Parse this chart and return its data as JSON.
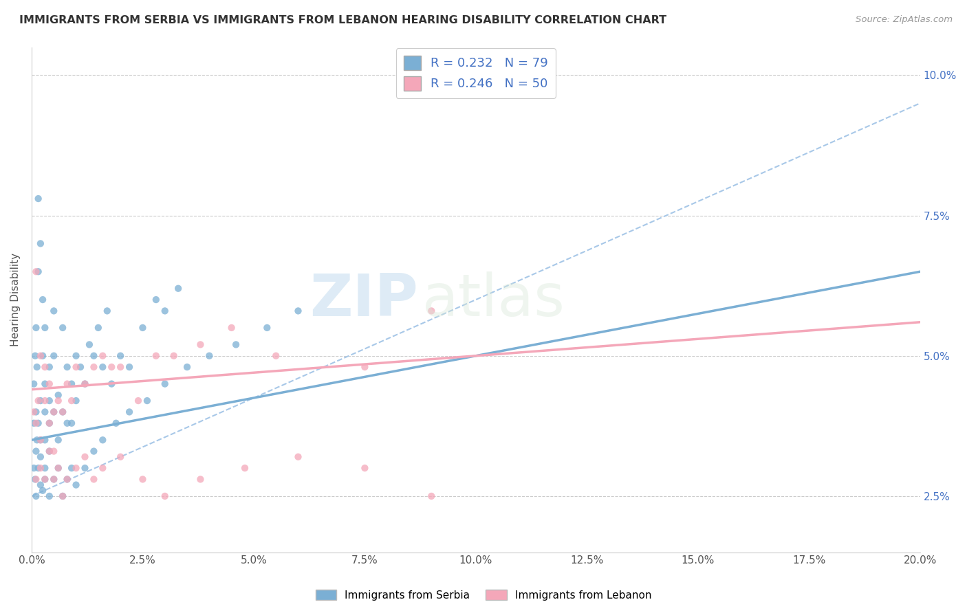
{
  "title": "IMMIGRANTS FROM SERBIA VS IMMIGRANTS FROM LEBANON HEARING DISABILITY CORRELATION CHART",
  "source": "Source: ZipAtlas.com",
  "xlabel": "",
  "ylabel": "Hearing Disability",
  "xlim": [
    0.0,
    0.2
  ],
  "ylim": [
    0.015,
    0.105
  ],
  "serbia_color": "#7bafd4",
  "lebanon_color": "#f4a7b9",
  "serbia_R": 0.232,
  "serbia_N": 79,
  "lebanon_R": 0.246,
  "lebanon_N": 50,
  "serbia_trendline": [
    0.0,
    0.035,
    0.2,
    0.065
  ],
  "lebanon_trendline": [
    0.0,
    0.044,
    0.2,
    0.056
  ],
  "dashed_line": [
    0.0,
    0.025,
    0.2,
    0.095
  ],
  "dashed_color": "#a8c8e8",
  "serbia_scatter_x": [
    0.0005,
    0.0005,
    0.0008,
    0.001,
    0.001,
    0.0012,
    0.0012,
    0.0015,
    0.0015,
    0.0015,
    0.002,
    0.002,
    0.002,
    0.0025,
    0.0025,
    0.003,
    0.003,
    0.003,
    0.003,
    0.004,
    0.004,
    0.004,
    0.005,
    0.005,
    0.005,
    0.006,
    0.006,
    0.007,
    0.007,
    0.008,
    0.008,
    0.009,
    0.009,
    0.01,
    0.01,
    0.011,
    0.012,
    0.013,
    0.014,
    0.015,
    0.016,
    0.017,
    0.018,
    0.02,
    0.022,
    0.025,
    0.028,
    0.03,
    0.033,
    0.0005,
    0.0008,
    0.001,
    0.001,
    0.0015,
    0.002,
    0.002,
    0.0025,
    0.003,
    0.003,
    0.004,
    0.004,
    0.005,
    0.006,
    0.007,
    0.008,
    0.009,
    0.01,
    0.012,
    0.014,
    0.016,
    0.019,
    0.022,
    0.026,
    0.03,
    0.035,
    0.04,
    0.046,
    0.053,
    0.06
  ],
  "serbia_scatter_y": [
    0.038,
    0.045,
    0.05,
    0.04,
    0.055,
    0.035,
    0.048,
    0.038,
    0.078,
    0.065,
    0.07,
    0.042,
    0.035,
    0.06,
    0.05,
    0.045,
    0.04,
    0.055,
    0.035,
    0.048,
    0.042,
    0.038,
    0.05,
    0.04,
    0.058,
    0.043,
    0.035,
    0.055,
    0.04,
    0.048,
    0.038,
    0.045,
    0.038,
    0.05,
    0.042,
    0.048,
    0.045,
    0.052,
    0.05,
    0.055,
    0.048,
    0.058,
    0.045,
    0.05,
    0.048,
    0.055,
    0.06,
    0.058,
    0.062,
    0.03,
    0.028,
    0.033,
    0.025,
    0.03,
    0.027,
    0.032,
    0.026,
    0.028,
    0.03,
    0.025,
    0.033,
    0.028,
    0.03,
    0.025,
    0.028,
    0.03,
    0.027,
    0.03,
    0.033,
    0.035,
    0.038,
    0.04,
    0.042,
    0.045,
    0.048,
    0.05,
    0.052,
    0.055,
    0.058
  ],
  "lebanon_scatter_x": [
    0.0005,
    0.001,
    0.001,
    0.0015,
    0.002,
    0.002,
    0.003,
    0.003,
    0.004,
    0.004,
    0.005,
    0.005,
    0.006,
    0.007,
    0.008,
    0.009,
    0.01,
    0.012,
    0.014,
    0.016,
    0.018,
    0.02,
    0.024,
    0.028,
    0.032,
    0.038,
    0.045,
    0.055,
    0.075,
    0.09,
    0.001,
    0.002,
    0.003,
    0.004,
    0.005,
    0.006,
    0.007,
    0.008,
    0.01,
    0.012,
    0.014,
    0.016,
    0.02,
    0.025,
    0.03,
    0.038,
    0.048,
    0.06,
    0.075,
    0.09
  ],
  "lebanon_scatter_y": [
    0.04,
    0.038,
    0.065,
    0.042,
    0.05,
    0.035,
    0.048,
    0.042,
    0.045,
    0.038,
    0.04,
    0.033,
    0.042,
    0.04,
    0.045,
    0.042,
    0.048,
    0.045,
    0.048,
    0.05,
    0.048,
    0.048,
    0.042,
    0.05,
    0.05,
    0.052,
    0.055,
    0.05,
    0.048,
    0.058,
    0.028,
    0.03,
    0.028,
    0.033,
    0.028,
    0.03,
    0.025,
    0.028,
    0.03,
    0.032,
    0.028,
    0.03,
    0.032,
    0.028,
    0.025,
    0.028,
    0.03,
    0.032,
    0.03,
    0.025
  ],
  "xticks": [
    0.0,
    0.025,
    0.05,
    0.075,
    0.1,
    0.125,
    0.15,
    0.175,
    0.2
  ],
  "xtick_labels": [
    "0.0%",
    "2.5%",
    "5.0%",
    "7.5%",
    "10.0%",
    "12.5%",
    "15.0%",
    "17.5%",
    "20.0%"
  ],
  "yticks": [
    0.025,
    0.05,
    0.075,
    0.1
  ],
  "ytick_labels": [
    "2.5%",
    "5.0%",
    "7.5%",
    "10.0%"
  ],
  "watermark_zip": "ZIP",
  "watermark_atlas": "atlas",
  "legend_label_serbia": "Immigrants from Serbia",
  "legend_label_lebanon": "Immigrants from Lebanon"
}
